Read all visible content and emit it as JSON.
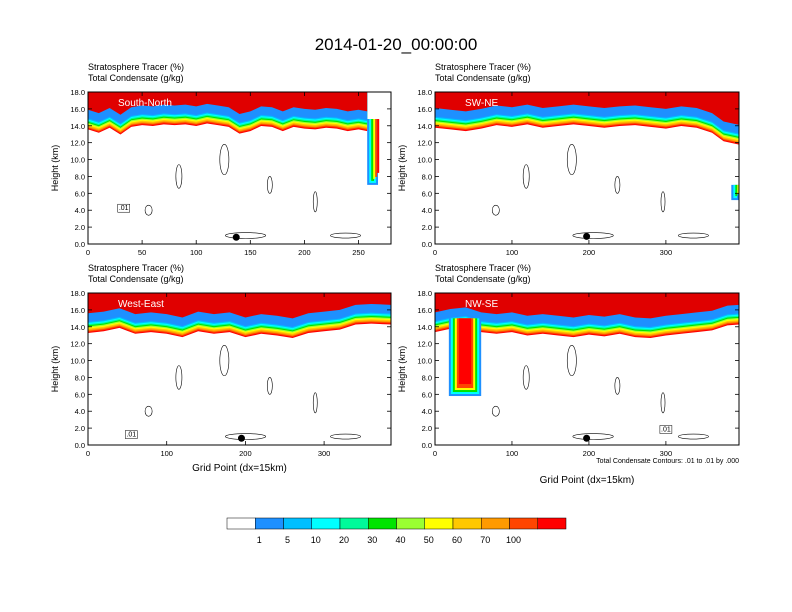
{
  "title": "2014-01-20_00:00:00",
  "chart_data": [
    {
      "type": "heatmap",
      "panel_label": "South-North",
      "subtitle_lines": [
        "Stratosphere Tracer   (%)",
        "Total Condensate   (g/kg)"
      ],
      "ylabel": "Height (km)",
      "xlabel": "",
      "xlim": [
        0,
        280
      ],
      "ylim": [
        0,
        18
      ],
      "xticks": [
        "0",
        "50",
        "100",
        "150",
        "200",
        "250"
      ],
      "yticks": [
        "0.0",
        "2.0",
        "4.0",
        "6.0",
        "8.0",
        "10.0",
        "12.0",
        "14.0",
        "16.0",
        "18.0"
      ],
      "tropopause": [
        [
          0,
          15.0
        ],
        [
          10,
          14.6
        ],
        [
          20,
          15.2
        ],
        [
          30,
          14.4
        ],
        [
          40,
          15.3
        ],
        [
          50,
          15.5
        ],
        [
          60,
          15.4
        ],
        [
          70,
          15.6
        ],
        [
          80,
          15.5
        ],
        [
          90,
          15.6
        ],
        [
          100,
          15.4
        ],
        [
          110,
          15.7
        ],
        [
          120,
          15.5
        ],
        [
          130,
          15.3
        ],
        [
          140,
          14.5
        ],
        [
          150,
          14.8
        ],
        [
          160,
          15.4
        ],
        [
          170,
          15.3
        ],
        [
          180,
          14.8
        ],
        [
          190,
          15.3
        ],
        [
          200,
          15.1
        ],
        [
          210,
          15.0
        ],
        [
          220,
          15.2
        ],
        [
          230,
          15.1
        ],
        [
          240,
          14.8
        ],
        [
          250,
          15.0
        ],
        [
          258,
          14.8
        ]
      ],
      "intrusion": {
        "x": [
          258,
          268
        ],
        "ybot": 7.0,
        "ytop": 14.8,
        "side": "right"
      },
      "marker": {
        "x": 137,
        "y": 0.8
      },
      "condensate_label": {
        "x": 33,
        "y": 4.0,
        "text": ".01"
      }
    },
    {
      "type": "heatmap",
      "panel_label": "SW-NE",
      "subtitle_lines": [
        "Stratosphere Tracer   (%)",
        "Total Condensate   (g/kg)"
      ],
      "ylabel": "Height (km)",
      "xlabel": "",
      "xlim": [
        0,
        395
      ],
      "ylim": [
        0,
        18
      ],
      "xticks": [
        "0",
        "100",
        "200",
        "300"
      ],
      "yticks": [
        "0.0",
        "2.0",
        "4.0",
        "6.0",
        "8.0",
        "10.0",
        "12.0",
        "14.0",
        "16.0",
        "18.0"
      ],
      "tropopause": [
        [
          0,
          15.2
        ],
        [
          20,
          15.0
        ],
        [
          40,
          14.8
        ],
        [
          60,
          15.1
        ],
        [
          80,
          15.5
        ],
        [
          100,
          15.3
        ],
        [
          120,
          15.6
        ],
        [
          140,
          15.2
        ],
        [
          160,
          15.4
        ],
        [
          180,
          15.6
        ],
        [
          200,
          15.4
        ],
        [
          220,
          15.2
        ],
        [
          240,
          15.4
        ],
        [
          260,
          15.5
        ],
        [
          280,
          15.3
        ],
        [
          300,
          15.1
        ],
        [
          320,
          15.4
        ],
        [
          340,
          15.2
        ],
        [
          360,
          14.6
        ],
        [
          375,
          13.6
        ],
        [
          395,
          13.2
        ]
      ],
      "intrusion": {
        "x": [
          385,
          395
        ],
        "ybot": 5.2,
        "ytop": 7.0,
        "side": "right"
      },
      "marker": {
        "x": 197,
        "y": 0.9
      },
      "condensate_label": null
    },
    {
      "type": "heatmap",
      "panel_label": "West-East",
      "subtitle_lines": [
        "Stratosphere Tracer   (%)",
        "Total Condensate   (g/kg)"
      ],
      "ylabel": "Height (km)",
      "xlabel": "Grid Point (dx=15km)",
      "xlim": [
        0,
        385
      ],
      "ylim": [
        0,
        18
      ],
      "xticks": [
        "0",
        "100",
        "200",
        "300"
      ],
      "yticks": [
        "0.0",
        "2.0",
        "4.0",
        "6.0",
        "8.0",
        "10.0",
        "12.0",
        "14.0",
        "16.0",
        "18.0"
      ],
      "tropopause": [
        [
          0,
          14.7
        ],
        [
          20,
          14.9
        ],
        [
          40,
          15.3
        ],
        [
          60,
          14.6
        ],
        [
          80,
          14.8
        ],
        [
          100,
          14.6
        ],
        [
          120,
          14.2
        ],
        [
          140,
          14.9
        ],
        [
          160,
          14.6
        ],
        [
          180,
          14.8
        ],
        [
          200,
          14.2
        ],
        [
          220,
          14.6
        ],
        [
          240,
          14.4
        ],
        [
          260,
          14.1
        ],
        [
          280,
          14.7
        ],
        [
          300,
          14.9
        ],
        [
          320,
          15.1
        ],
        [
          340,
          15.7
        ],
        [
          360,
          15.8
        ],
        [
          385,
          15.7
        ]
      ],
      "intrusion": null,
      "marker": {
        "x": 195,
        "y": 0.8
      },
      "condensate_label": {
        "x": 55,
        "y": 1.0,
        "text": ".01"
      }
    },
    {
      "type": "heatmap",
      "panel_label": "NW-SE",
      "subtitle_lines": [
        "Stratosphere Tracer   (%)",
        "Total Condensate   (g/kg)"
      ],
      "ylabel": "Height (km)",
      "xlabel": "Grid Point (dx=15km)",
      "xlim": [
        0,
        395
      ],
      "ylim": [
        0,
        18
      ],
      "xticks": [
        "0",
        "100",
        "200",
        "300"
      ],
      "yticks": [
        "0.0",
        "2.0",
        "4.0",
        "6.0",
        "8.0",
        "10.0",
        "12.0",
        "14.0",
        "16.0",
        "18.0"
      ],
      "tropopause": [
        [
          0,
          14.8
        ],
        [
          20,
          15.2
        ],
        [
          40,
          15.4
        ],
        [
          60,
          14.8
        ],
        [
          80,
          14.6
        ],
        [
          100,
          14.8
        ],
        [
          120,
          14.4
        ],
        [
          140,
          14.6
        ],
        [
          160,
          14.4
        ],
        [
          180,
          14.2
        ],
        [
          200,
          14.5
        ],
        [
          220,
          14.3
        ],
        [
          240,
          14.6
        ],
        [
          260,
          14.2
        ],
        [
          280,
          14.1
        ],
        [
          300,
          14.4
        ],
        [
          320,
          14.6
        ],
        [
          340,
          14.8
        ],
        [
          360,
          15.0
        ],
        [
          380,
          15.6
        ],
        [
          395,
          15.7
        ]
      ],
      "intrusion": {
        "x": [
          18,
          60
        ],
        "ybot": 5.8,
        "ytop": 15.0,
        "side": "left"
      },
      "marker": {
        "x": 197,
        "y": 0.8
      },
      "condensate_label": {
        "x": 300,
        "y": 1.6,
        "text": ".01"
      }
    }
  ],
  "contour_note": "Total Condensate Contours: .01 to .01 by .000",
  "colorbar": {
    "levels": [
      "1",
      "5",
      "10",
      "20",
      "30",
      "40",
      "50",
      "60",
      "70",
      "100"
    ],
    "colors": [
      "#ffffff",
      "#1e90ff",
      "#00bfff",
      "#00ffff",
      "#00fa9a",
      "#00e400",
      "#9aff32",
      "#ffff00",
      "#ffc800",
      "#ff9a00",
      "#ff4500",
      "#ff0000"
    ]
  }
}
